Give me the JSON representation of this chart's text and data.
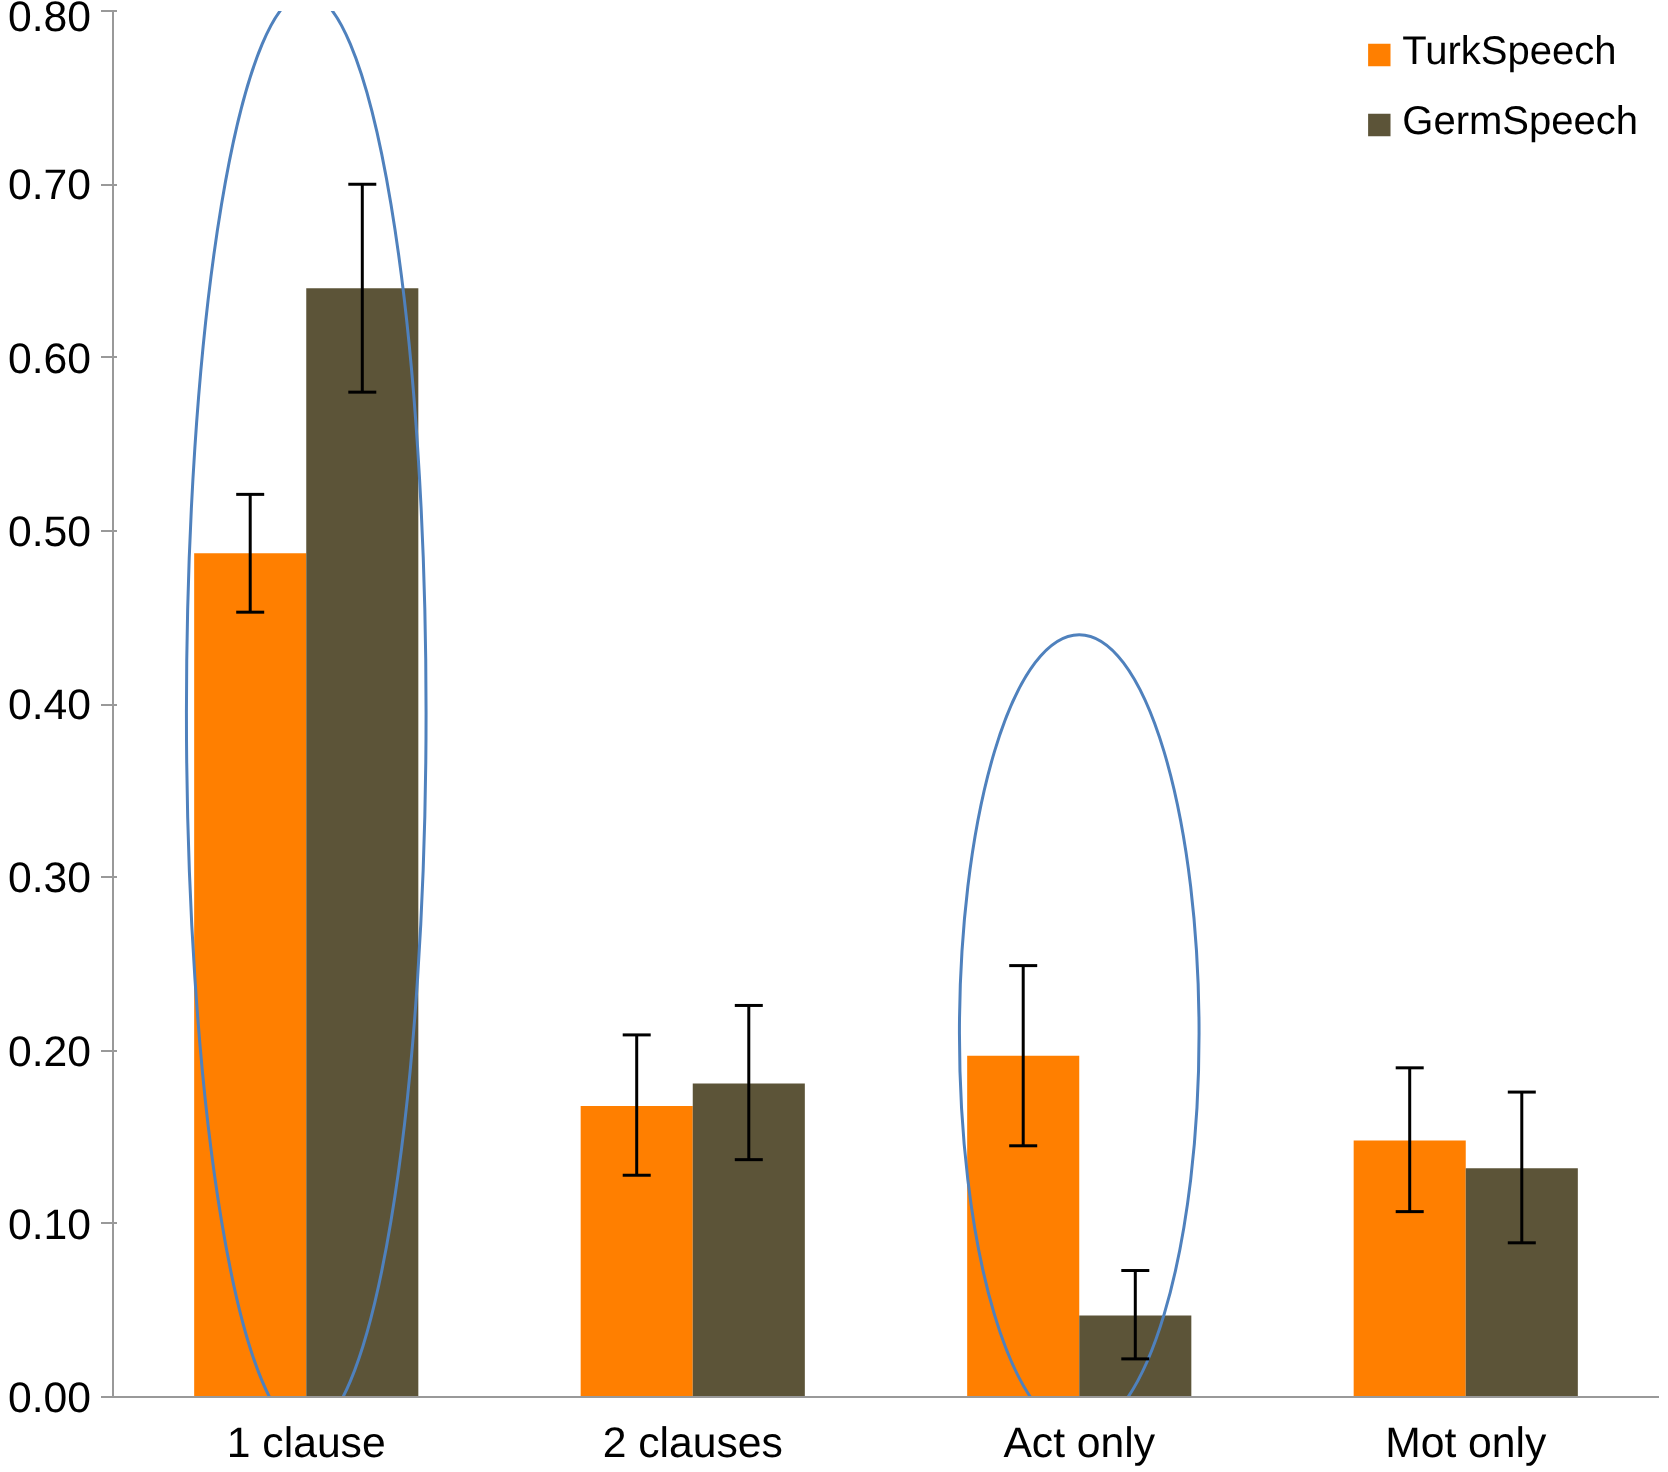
{
  "chart_data": {
    "type": "bar",
    "categories": [
      "1 clause",
      "2 clauses",
      "Act only",
      "Mot only"
    ],
    "series": [
      {
        "name": "TurkSpeech",
        "color": "#ff7f00",
        "values": [
          0.487,
          0.168,
          0.197,
          0.148
        ],
        "errors": [
          [
            0.453,
            0.521
          ],
          [
            0.128,
            0.209
          ],
          [
            0.145,
            0.249
          ],
          [
            0.107,
            0.19
          ]
        ]
      },
      {
        "name": "GermSpeech",
        "color": "#5c5438",
        "values": [
          0.64,
          0.181,
          0.047,
          0.132
        ],
        "errors": [
          [
            0.58,
            0.7
          ],
          [
            0.137,
            0.226
          ],
          [
            0.022,
            0.073
          ],
          [
            0.089,
            0.176
          ]
        ]
      }
    ],
    "ylim": [
      0,
      0.8
    ],
    "yticks": [
      {
        "value": 0,
        "label": "0.00"
      },
      {
        "value": 0.1,
        "label": "0.10"
      },
      {
        "value": 0.2,
        "label": "0.20"
      },
      {
        "value": 0.3,
        "label": "0.30"
      },
      {
        "value": 0.4,
        "label": "0.40"
      },
      {
        "value": 0.5,
        "label": "0.50"
      },
      {
        "value": 0.6,
        "label": "0.60"
      },
      {
        "value": 0.7,
        "label": "0.70"
      },
      {
        "value": 0.8,
        "label": "0.80"
      }
    ],
    "grid": false,
    "legend": "top right"
  }
}
